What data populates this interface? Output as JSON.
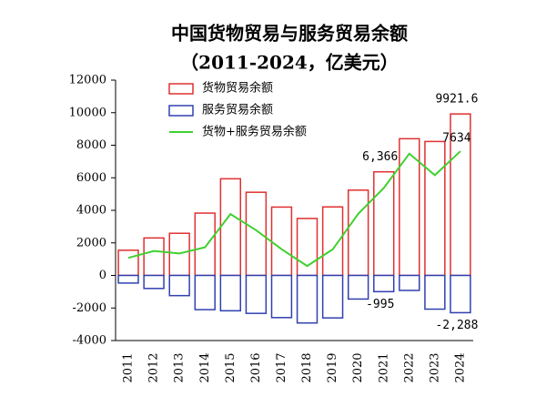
{
  "chart_data": {
    "type": "bar",
    "title": "中国货物贸易与服务贸易余额",
    "subtitle": "（2011-2024，亿美元）",
    "categories": [
      "2011",
      "2012",
      "2013",
      "2014",
      "2015",
      "2016",
      "2017",
      "2018",
      "2019",
      "2020",
      "2021",
      "2022",
      "2023",
      "2024"
    ],
    "series": [
      {
        "name": "货物贸易余额",
        "color": "#e03030",
        "type": "bar",
        "values": [
          1549,
          2303,
          2590,
          3830,
          5939,
          5110,
          4200,
          3500,
          4210,
          5240,
          6366,
          8400,
          8230,
          9921.6
        ],
        "value_labels": [
          null,
          null,
          null,
          null,
          null,
          null,
          null,
          null,
          null,
          null,
          "6,366",
          null,
          null,
          "9921.6"
        ]
      },
      {
        "name": "服务贸易余额",
        "color": "#3040b0",
        "type": "bar",
        "values": [
          -468,
          -800,
          -1240,
          -2100,
          -2170,
          -2330,
          -2590,
          -2920,
          -2610,
          -1450,
          -995,
          -920,
          -2070,
          -2288
        ],
        "value_labels": [
          null,
          null,
          null,
          null,
          null,
          null,
          null,
          null,
          null,
          null,
          "-995",
          null,
          null,
          "-2,288"
        ]
      },
      {
        "name": "货物+服务贸易余额",
        "color": "#40d030",
        "type": "line",
        "values": [
          1081,
          1503,
          1350,
          1730,
          3769,
          2780,
          1610,
          580,
          1600,
          3790,
          5371,
          7480,
          6160,
          7634
        ],
        "value_labels": [
          null,
          null,
          null,
          null,
          null,
          null,
          null,
          null,
          null,
          null,
          null,
          null,
          null,
          "7634"
        ]
      }
    ],
    "ylim": [
      -4000,
      12000
    ],
    "yticks": [
      -4000,
      -2000,
      0,
      2000,
      4000,
      6000,
      8000,
      10000,
      12000
    ],
    "legend": "top-left",
    "grid": false
  }
}
